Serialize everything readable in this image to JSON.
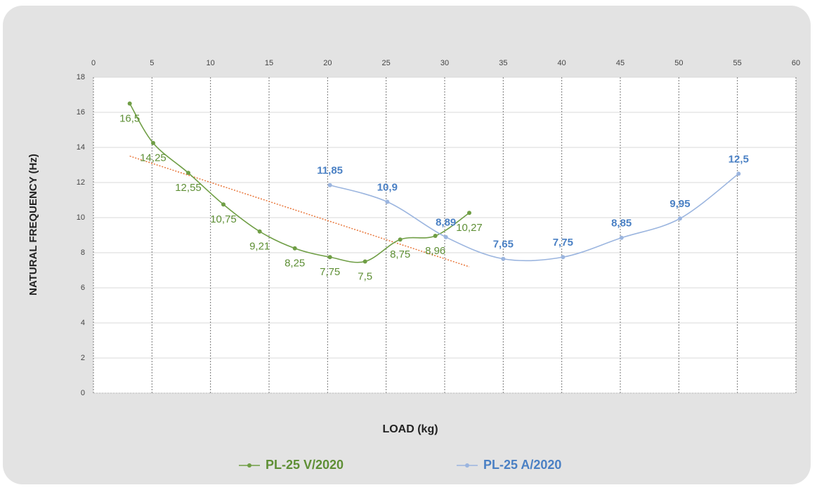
{
  "chart_data": {
    "type": "line",
    "xlabel": "LOAD (kg)",
    "ylabel": "NATURAL FREQUENCY (Hz)",
    "xlim": [
      0,
      60
    ],
    "xticks": [
      0,
      5,
      10,
      15,
      20,
      25,
      30,
      35,
      40,
      45,
      50,
      55,
      60
    ],
    "ylim": [
      0,
      18
    ],
    "yticks": [
      0,
      2,
      4,
      6,
      8,
      10,
      12,
      14,
      16,
      18
    ],
    "grid": true,
    "trendline": true,
    "trendline_color": "#e8763a",
    "legend": "bottom",
    "series": [
      {
        "name": "PL-25 V/2020",
        "color": "#6f9e45",
        "label_color": "#5e8f35",
        "x": [
          3.1,
          5.1,
          8.1,
          11.1,
          14.2,
          17.2,
          20.2,
          23.2,
          26.2,
          29.2,
          32.1
        ],
        "values": [
          16.5,
          14.25,
          12.55,
          10.75,
          9.21,
          8.25,
          7.75,
          7.5,
          8.75,
          8.96,
          10.27
        ],
        "value_labels": [
          "16,5",
          "14,25",
          "12,55",
          "10,75",
          "9,21",
          "8,25",
          "7,75",
          "7,5",
          "8,75",
          "8,96",
          "10,27"
        ]
      },
      {
        "name": "PL-25 A/2020",
        "color": "#9bb5df",
        "label_color": "#4a80c4",
        "x": [
          20.2,
          25.1,
          30.1,
          35.0,
          40.1,
          45.1,
          50.1,
          55.1
        ],
        "values": [
          11.85,
          10.9,
          8.89,
          7.65,
          7.75,
          8.85,
          9.95,
          12.5
        ],
        "value_labels": [
          "11,85",
          "10,9",
          "8,89",
          "7,65",
          "7,75",
          "8,85",
          "9,95",
          "12,5"
        ]
      }
    ]
  }
}
